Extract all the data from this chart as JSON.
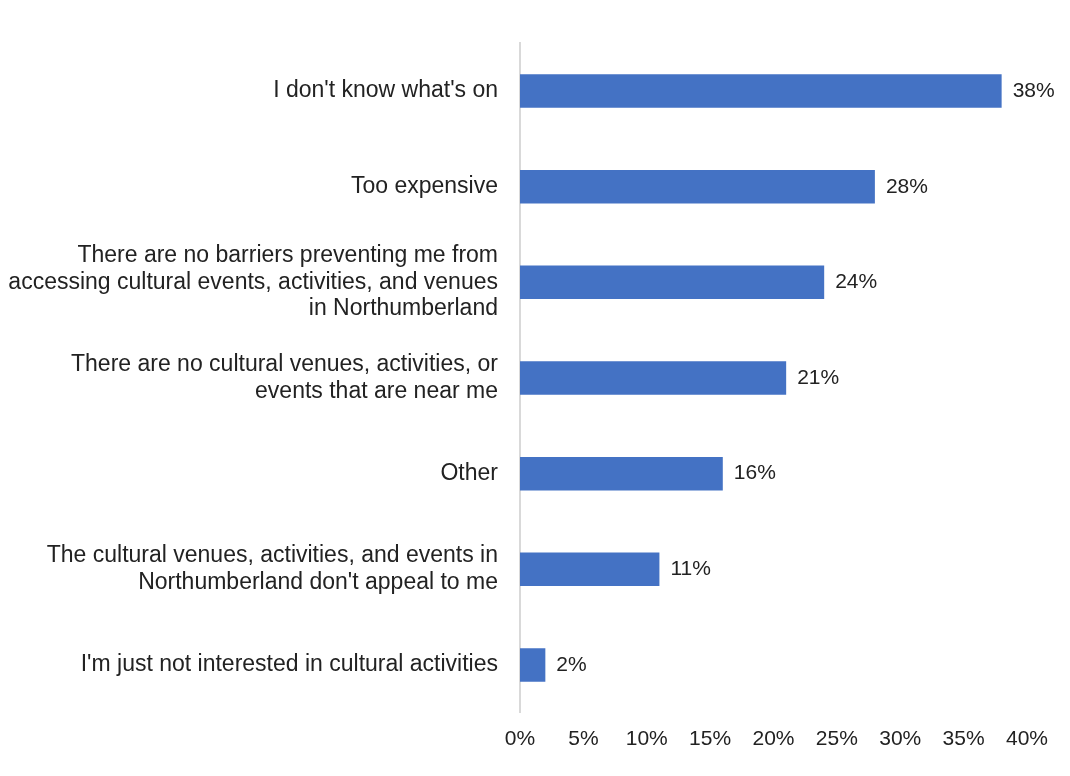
{
  "chart_data": {
    "type": "bar",
    "orientation": "horizontal",
    "categories": [
      "I don't know what's on",
      "Too expensive",
      "There are no barriers preventing me from accessing cultural events, activities, and venues in Northumberland",
      "There are no cultural venues, activities, or events that are near me",
      "Other",
      "The cultural venues, activities, and events in Northumberland don't appeal to me",
      "I'm just not interested in cultural activities"
    ],
    "values": [
      38,
      28,
      24,
      21,
      16,
      11,
      2
    ],
    "value_labels": [
      "38%",
      "28%",
      "24%",
      "21%",
      "16%",
      "11%",
      "2%"
    ],
    "color": "#4472c4",
    "xlim": [
      0,
      40
    ],
    "xticks": [
      {
        "value": 0,
        "label": "0%"
      },
      {
        "value": 5,
        "label": "5%"
      },
      {
        "value": 10,
        "label": "10%"
      },
      {
        "value": 15,
        "label": "15%"
      },
      {
        "value": 20,
        "label": "20%"
      },
      {
        "value": 25,
        "label": "25%"
      },
      {
        "value": 30,
        "label": "30%"
      },
      {
        "value": 35,
        "label": "35%"
      },
      {
        "value": 40,
        "label": "40%"
      }
    ]
  }
}
